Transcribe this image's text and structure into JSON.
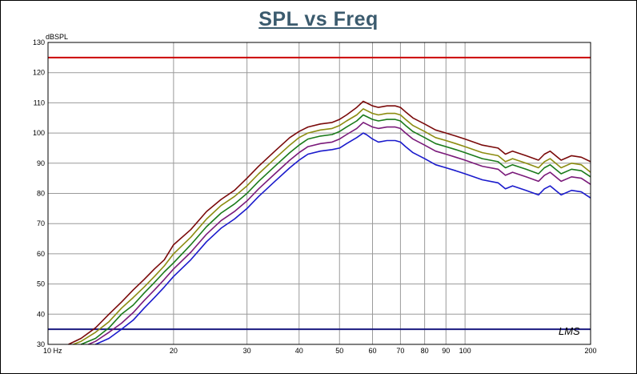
{
  "chart_data": {
    "type": "line",
    "title": "SPL vs Freq",
    "ylabel": "dBSPL",
    "xlabel": "",
    "xscale": "log",
    "xlim": [
      10,
      200
    ],
    "ylim": [
      30,
      130
    ],
    "grid": true,
    "watermark": "LMS",
    "x_ticks": [
      {
        "value": 10,
        "label": "10  Hz"
      },
      {
        "value": 20,
        "label": "20"
      },
      {
        "value": 30,
        "label": "30"
      },
      {
        "value": 40,
        "label": "40"
      },
      {
        "value": 50,
        "label": "50"
      },
      {
        "value": 60,
        "label": "60"
      },
      {
        "value": 70,
        "label": "70"
      },
      {
        "value": 80,
        "label": "80"
      },
      {
        "value": 90,
        "label": "90"
      },
      {
        "value": 100,
        "label": "100"
      },
      {
        "value": 200,
        "label": "200"
      }
    ],
    "y_ticks": [
      {
        "value": 30,
        "label": "30"
      },
      {
        "value": 40,
        "label": "40"
      },
      {
        "value": 50,
        "label": "50"
      },
      {
        "value": 60,
        "label": "60"
      },
      {
        "value": 70,
        "label": "70"
      },
      {
        "value": 80,
        "label": "80"
      },
      {
        "value": 90,
        "label": "90"
      },
      {
        "value": 100,
        "label": "100"
      },
      {
        "value": 110,
        "label": "110"
      },
      {
        "value": 120,
        "label": "120"
      },
      {
        "value": 130,
        "label": "130"
      }
    ],
    "reference_lines": [
      {
        "name": "upper-limit",
        "value": 125,
        "color": "#cc0000"
      },
      {
        "name": "lower-limit",
        "value": 35,
        "color": "#1a1a80"
      }
    ],
    "series": [
      {
        "name": "trace-1",
        "color": "#7a0a0a",
        "x": [
          11.2,
          12,
          13,
          14,
          15,
          16,
          17,
          18,
          19,
          20,
          22,
          24,
          26,
          28,
          30,
          32,
          35,
          38,
          40,
          42,
          45,
          48,
          50,
          52,
          55,
          57,
          58,
          60,
          62,
          65,
          68,
          70,
          72,
          75,
          80,
          85,
          90,
          95,
          100,
          110,
          120,
          125,
          130,
          140,
          150,
          155,
          160,
          170,
          180,
          190,
          200
        ],
        "y": [
          30,
          32,
          35.5,
          40,
          44,
          48,
          51.5,
          55,
          58,
          63,
          68,
          74,
          78,
          81,
          85,
          89,
          94,
          98.5,
          100.5,
          102,
          103,
          103.5,
          104.5,
          106,
          108.5,
          110.5,
          110,
          109,
          108.5,
          109,
          109,
          108.5,
          107,
          105,
          103,
          101,
          100,
          99,
          98,
          96,
          95,
          93,
          94,
          92.5,
          91,
          93,
          94,
          91,
          92.5,
          92,
          90.5
        ]
      },
      {
        "name": "trace-2",
        "color": "#8c8c10",
        "x": [
          11.5,
          12,
          13,
          14,
          15,
          16,
          17,
          18,
          19,
          20,
          22,
          24,
          26,
          28,
          30,
          32,
          35,
          38,
          40,
          42,
          45,
          48,
          50,
          52,
          55,
          57,
          58,
          60,
          62,
          65,
          68,
          70,
          72,
          75,
          80,
          85,
          90,
          95,
          100,
          110,
          120,
          125,
          130,
          140,
          150,
          155,
          160,
          170,
          180,
          190,
          200
        ],
        "y": [
          30,
          31,
          34,
          37.5,
          42,
          45.5,
          49,
          52.5,
          56,
          60,
          65.5,
          71.5,
          76,
          79,
          82.5,
          86.5,
          91.5,
          96,
          98.5,
          100,
          101,
          101.5,
          102.5,
          104,
          106,
          108,
          107.5,
          106.5,
          106,
          106.5,
          106.5,
          106,
          104.5,
          102.5,
          100.5,
          98.5,
          97.5,
          96.5,
          95.5,
          93.5,
          92.5,
          90.5,
          91.5,
          90,
          88.5,
          90.5,
          91.5,
          88.5,
          90,
          89.5,
          87
        ]
      },
      {
        "name": "trace-3",
        "color": "#1a7a1a",
        "x": [
          12,
          13,
          14,
          15,
          16,
          17,
          18,
          19,
          20,
          22,
          24,
          26,
          28,
          30,
          32,
          35,
          38,
          40,
          42,
          45,
          48,
          50,
          52,
          55,
          57,
          58,
          60,
          62,
          65,
          68,
          70,
          72,
          75,
          80,
          85,
          90,
          95,
          100,
          110,
          120,
          125,
          130,
          140,
          150,
          155,
          160,
          170,
          180,
          190,
          200
        ],
        "y": [
          30,
          32,
          35.5,
          40,
          43,
          47,
          50.5,
          54,
          57,
          63,
          69,
          73.5,
          76.5,
          80,
          84,
          89,
          93.5,
          96,
          98,
          99,
          99.5,
          100.5,
          102,
          104,
          106,
          105.5,
          104.5,
          104,
          104.5,
          104.5,
          104,
          102.5,
          100.5,
          98.5,
          96.5,
          95.5,
          94.5,
          93.5,
          91.5,
          90.5,
          88.5,
          89.5,
          88,
          86.5,
          88.5,
          89.5,
          86.5,
          88,
          87.5,
          85.5
        ]
      },
      {
        "name": "trace-4",
        "color": "#7a1a7a",
        "x": [
          12.5,
          13,
          14,
          15,
          16,
          17,
          18,
          19,
          20,
          22,
          24,
          26,
          28,
          30,
          32,
          35,
          38,
          40,
          42,
          45,
          48,
          50,
          52,
          55,
          57,
          58,
          60,
          62,
          65,
          68,
          70,
          72,
          75,
          80,
          85,
          90,
          95,
          100,
          110,
          120,
          125,
          130,
          140,
          150,
          155,
          160,
          170,
          180,
          190,
          200
        ],
        "y": [
          30,
          31,
          34,
          37,
          40.5,
          44.5,
          48,
          51.5,
          55,
          60.5,
          66.5,
          71,
          74,
          77.5,
          81.5,
          86.5,
          91,
          93.5,
          95.5,
          96.5,
          97,
          98,
          99.5,
          101.5,
          103.5,
          103,
          102,
          101.5,
          102,
          102,
          101.5,
          100,
          98,
          96,
          94,
          93,
          92,
          91,
          89,
          88,
          86,
          87,
          85.5,
          84,
          86,
          87,
          84,
          85.5,
          85,
          83
        ]
      },
      {
        "name": "trace-5",
        "color": "#1a1acc",
        "x": [
          13,
          14,
          15,
          16,
          17,
          18,
          19,
          20,
          22,
          24,
          26,
          28,
          30,
          32,
          35,
          38,
          40,
          42,
          45,
          48,
          50,
          52,
          55,
          57,
          58,
          60,
          62,
          65,
          68,
          70,
          72,
          75,
          80,
          85,
          90,
          95,
          100,
          110,
          120,
          125,
          130,
          140,
          150,
          155,
          160,
          170,
          180,
          190,
          200
        ],
        "y": [
          30,
          32,
          35,
          38,
          42,
          45.5,
          49,
          52.5,
          58,
          64,
          68.5,
          71.5,
          75,
          79,
          84,
          88.5,
          91,
          93,
          94,
          94.5,
          95,
          96.5,
          98.5,
          100,
          99.5,
          98,
          97,
          97.5,
          97.5,
          97,
          95.5,
          93.5,
          91.5,
          89.5,
          88.5,
          87.5,
          86.5,
          84.5,
          83.5,
          81.5,
          82.5,
          81,
          79.5,
          81.5,
          82.5,
          79.5,
          81,
          80.5,
          78.5
        ]
      }
    ]
  }
}
